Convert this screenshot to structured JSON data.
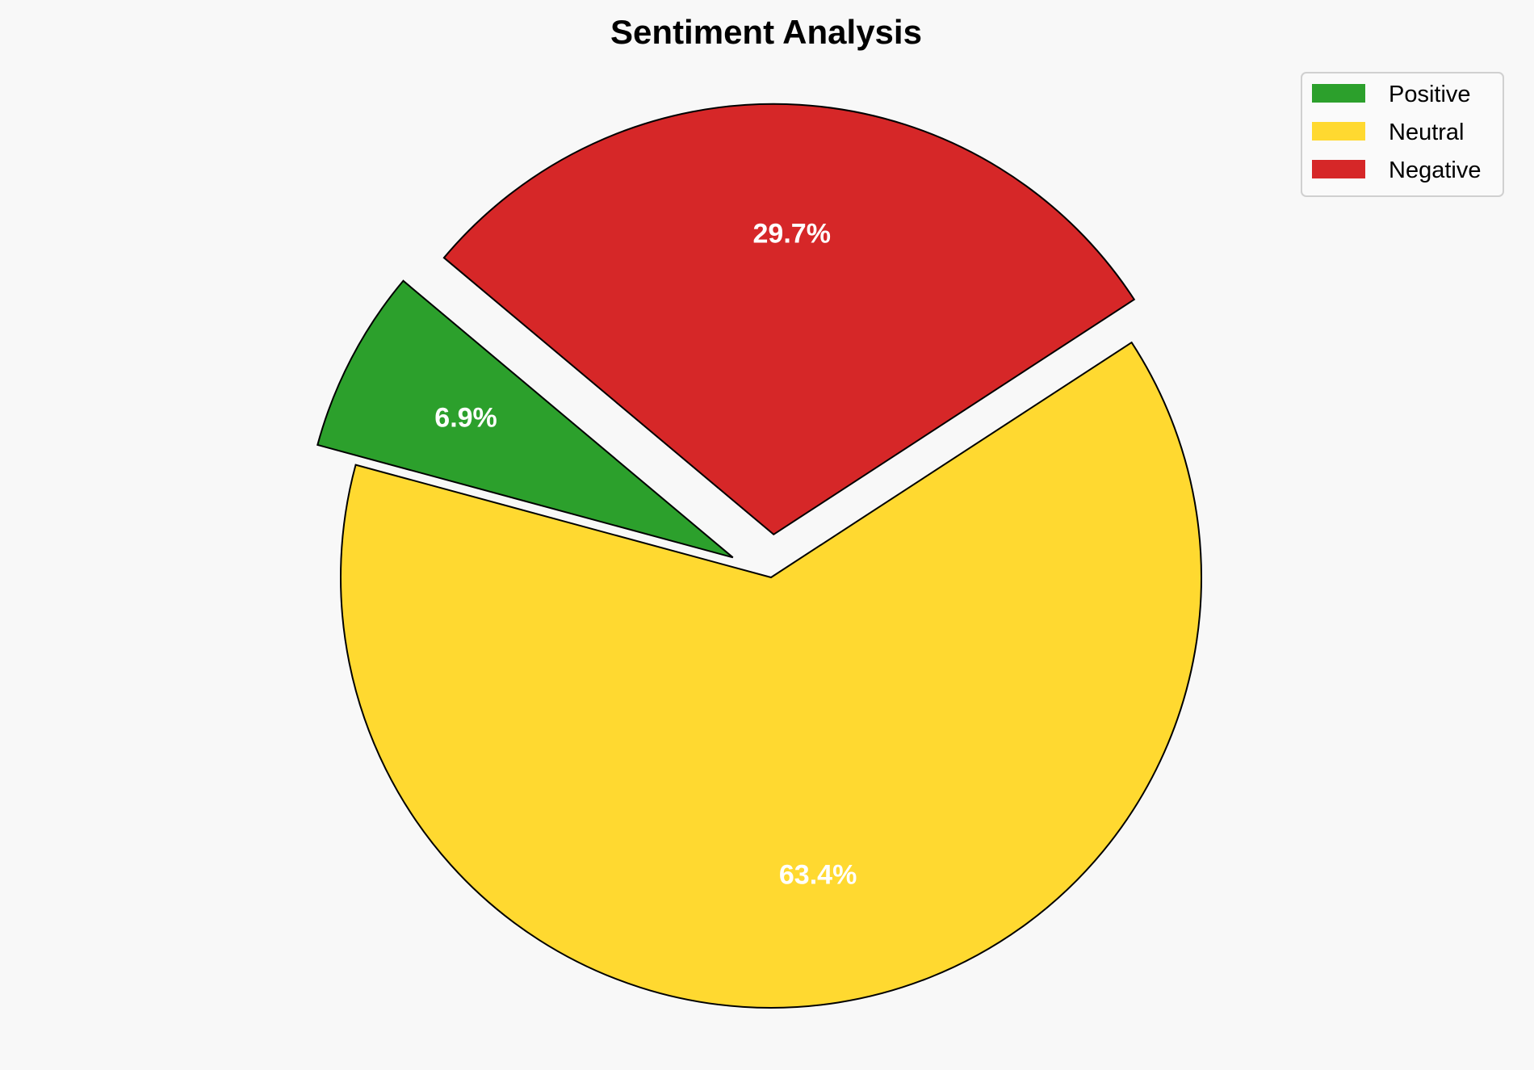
{
  "chart_data": {
    "type": "pie",
    "title": "Sentiment Analysis",
    "start_angle_deg": 140,
    "direction": "counterclockwise",
    "slices": [
      {
        "label": "Positive",
        "value": 6.9,
        "pct_label": "6.9%",
        "color": "#2ca02c",
        "exploded": true
      },
      {
        "label": "Neutral",
        "value": 63.4,
        "pct_label": "63.4%",
        "color": "#ffd930",
        "exploded": false
      },
      {
        "label": "Negative",
        "value": 29.7,
        "pct_label": "29.7%",
        "color": "#d62728",
        "exploded": true
      }
    ],
    "legend": {
      "placement": "top-right",
      "entries": [
        "Positive",
        "Neutral",
        "Negative"
      ]
    },
    "edge_color": "#000000",
    "background": "#f8f8f8"
  }
}
